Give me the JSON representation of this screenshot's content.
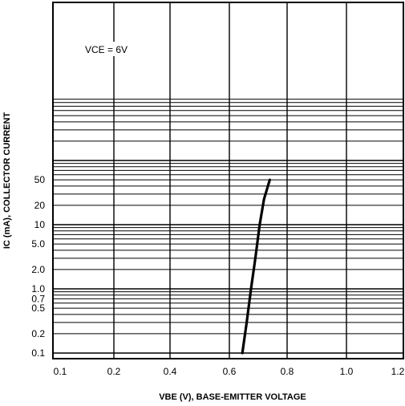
{
  "chart_data": {
    "type": "line",
    "title": "",
    "xlabel": "VBE (V), BASE-EMITTER VOLTAGE",
    "ylabel": "IC (mA), COLLECTOR CURRENT",
    "x_scale": "linear",
    "y_scale": "log",
    "xlim": [
      0.1,
      1.2
    ],
    "x_ticks": [
      "0.1",
      "0.2",
      "0.4",
      "0.6",
      "0.8",
      "1.0",
      "1.2"
    ],
    "y_ticks": [
      "0.1",
      "0.2",
      "0.5",
      "0.7",
      "1.0",
      "2.0",
      "5.0",
      "10",
      "20",
      "50"
    ],
    "grid": true,
    "annotation": "VCE = 6V",
    "series": [
      {
        "x": [
          0.645,
          0.66,
          0.675,
          0.69,
          0.705,
          0.72,
          0.74
        ],
        "y": [
          0.1,
          0.3,
          1.0,
          3.0,
          10,
          25,
          50
        ]
      }
    ]
  }
}
